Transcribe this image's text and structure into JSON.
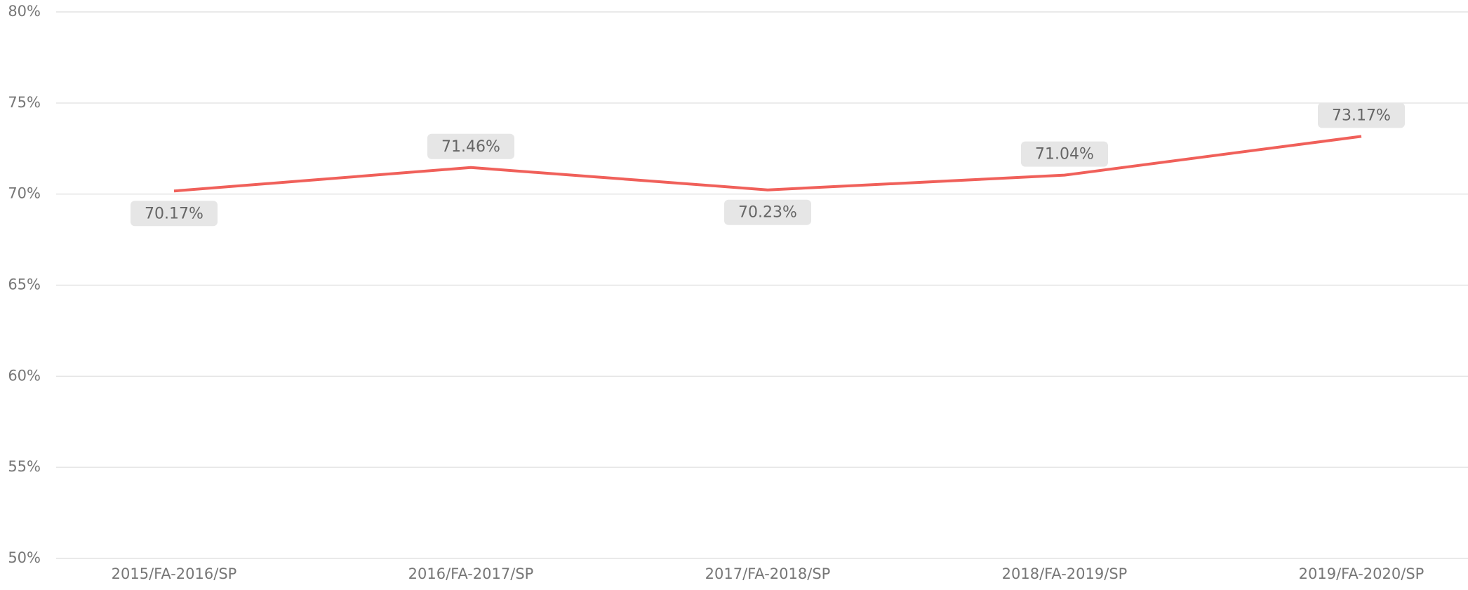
{
  "chart_data": {
    "type": "line",
    "categories": [
      "2015/FA-2016/SP",
      "2016/FA-2017/SP",
      "2017/FA-2018/SP",
      "2018/FA-2019/SP",
      "2019/FA-2020/SP"
    ],
    "series": [
      {
        "color": "#f0605a",
        "values": [
          70.17,
          71.46,
          70.23,
          71.04,
          73.17
        ],
        "value_labels": [
          "70.17%",
          "71.46%",
          "70.23%",
          "71.04%",
          "73.17%"
        ]
      }
    ],
    "ylim": [
      50,
      80
    ],
    "yticks": [
      {
        "value": 50,
        "label": "50%"
      },
      {
        "value": 55,
        "label": "55%"
      },
      {
        "value": 60,
        "label": "60%"
      },
      {
        "value": 65,
        "label": "65%"
      },
      {
        "value": 70,
        "label": "70%"
      },
      {
        "value": 75,
        "label": "75%"
      },
      {
        "value": 80,
        "label": "80%"
      }
    ],
    "grid": true
  }
}
